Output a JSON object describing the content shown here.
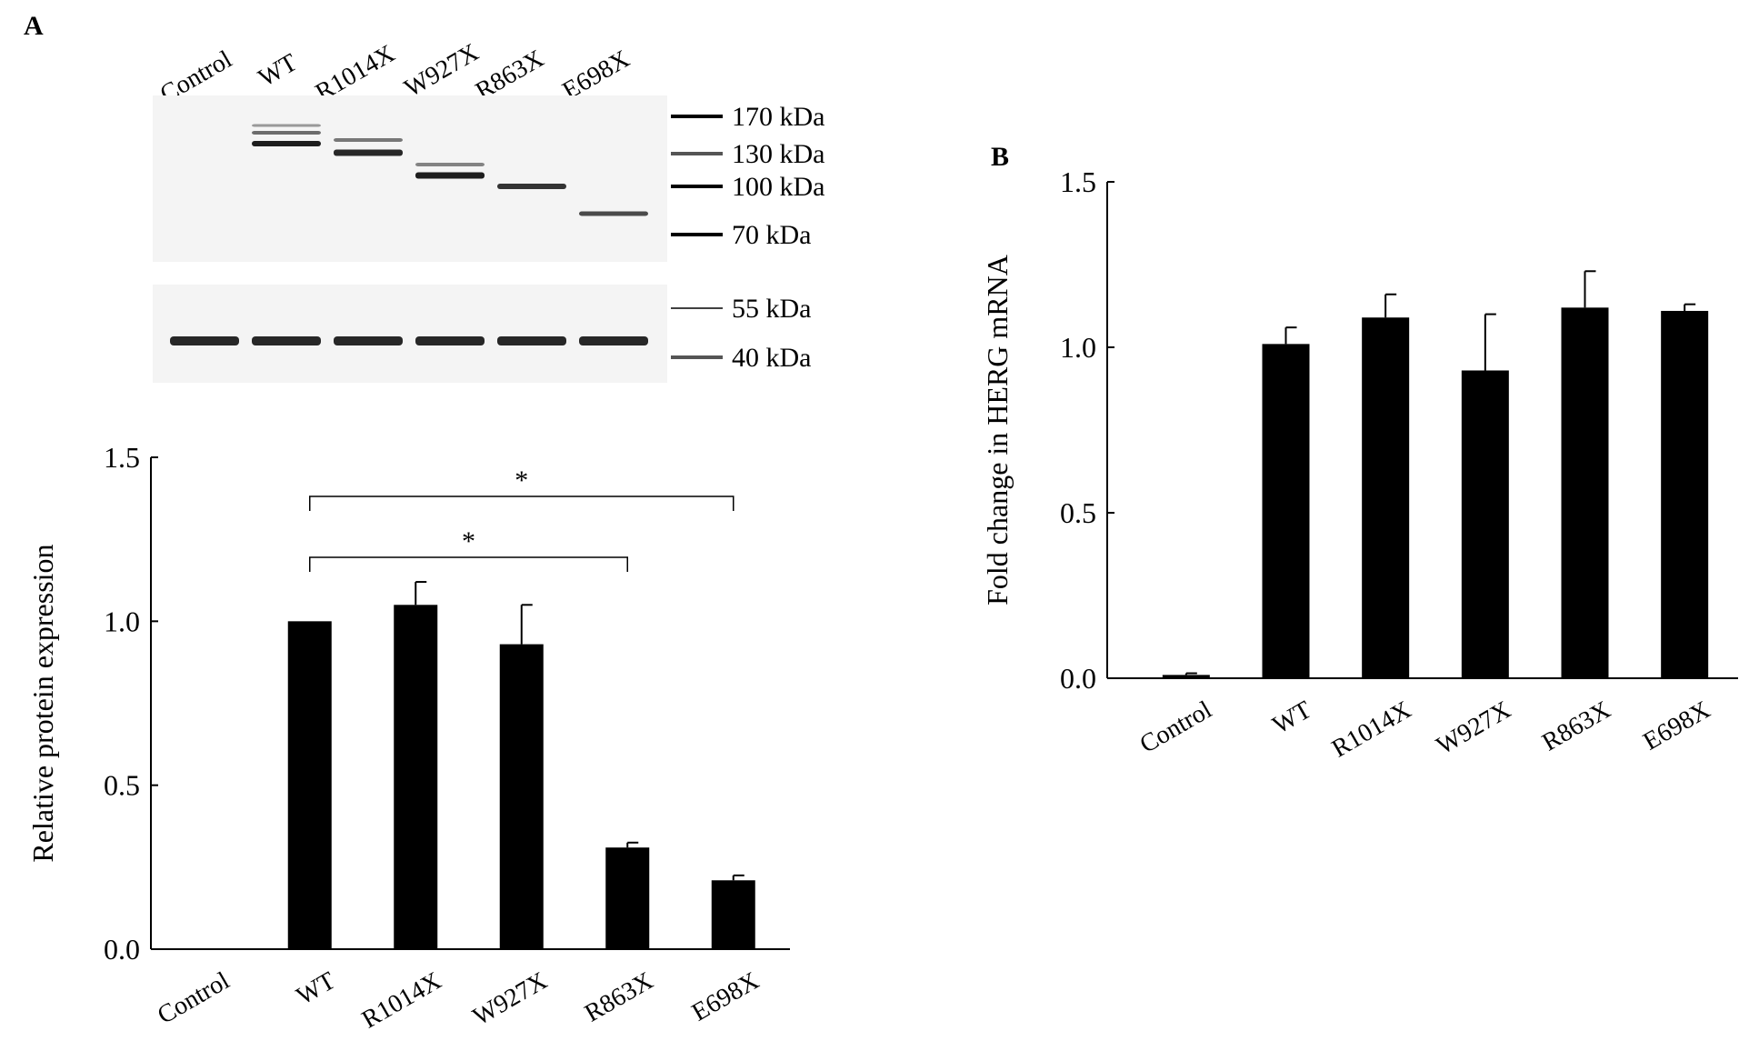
{
  "panel_a_label": "A",
  "panel_b_label": "B",
  "blot": {
    "lanes": [
      "Control",
      "WT",
      "R1014X",
      "W927X",
      "R863X",
      "E698X"
    ],
    "upper_markers": [
      "170 kDa",
      "130 kDa",
      "100 kDa",
      "70 kDa"
    ],
    "lower_markers": [
      "55 kDa",
      "40 kDa"
    ]
  },
  "chart_data": [
    {
      "type": "bar",
      "panel": "A",
      "categories": [
        "Control",
        "WT",
        "R1014X",
        "W927X",
        "R863X",
        "E698X"
      ],
      "values": [
        0.0,
        1.0,
        1.05,
        0.93,
        0.31,
        0.21
      ],
      "errors": [
        0.0,
        0.0,
        0.07,
        0.12,
        0.015,
        0.015
      ],
      "ylabel": "Relative protein expression",
      "ylim": [
        0,
        1.5
      ],
      "yticks": [
        "0.0",
        "0.5",
        "1.0",
        "1.5"
      ],
      "significance": [
        {
          "from": "WT",
          "to": "R863X",
          "label": "*"
        },
        {
          "from": "WT",
          "to": "E698X",
          "label": "*"
        }
      ],
      "grid": false,
      "bar_color": "#000000"
    },
    {
      "type": "bar",
      "panel": "B",
      "categories": [
        "Control",
        "WT",
        "R1014X",
        "W927X",
        "R863X",
        "E698X"
      ],
      "values": [
        0.01,
        1.01,
        1.09,
        0.93,
        1.12,
        1.11
      ],
      "errors": [
        0.005,
        0.05,
        0.07,
        0.17,
        0.11,
        0.02
      ],
      "ylabel": "Fold change in HERG mRNA",
      "ylim": [
        0,
        1.5
      ],
      "yticks": [
        "0.0",
        "0.5",
        "1.0",
        "1.5"
      ],
      "grid": false,
      "bar_color": "#000000"
    }
  ]
}
